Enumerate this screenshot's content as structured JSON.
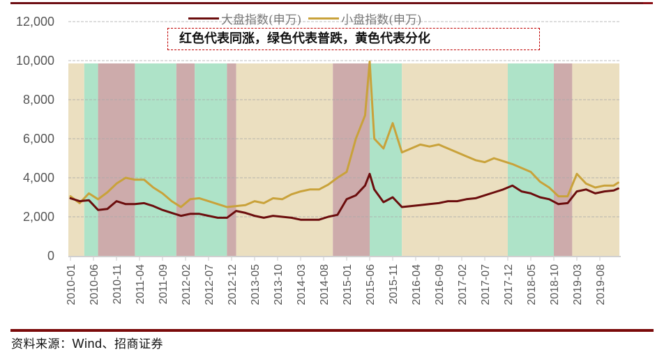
{
  "legend": {
    "items": [
      {
        "label": "大盘指数(申万)",
        "color": "#6b0d0d"
      },
      {
        "label": "小盘指数(申万)",
        "color": "#c9a23a"
      }
    ]
  },
  "annotation": {
    "text": "红色代表同涨，绿色代表普跌，黄色代表分化"
  },
  "source": {
    "prefix": "资料来源：",
    "wind": "Wind",
    "suffix": "、招商证券"
  },
  "colors": {
    "red_region": "#cdabab",
    "green_region": "#aee3c8",
    "yellow_region": "#ebdfc0",
    "large_cap_line": "#6b0d0d",
    "small_cap_line": "#c9a23a",
    "rule": "#7a0a0a",
    "annotation_border": "#c00000"
  },
  "chart_data": {
    "type": "line",
    "title": "",
    "xlabel": "",
    "ylabel": "",
    "ylim": [
      0,
      12000
    ],
    "yticks": [
      "0",
      "2,000",
      "4,000",
      "6,000",
      "8,000",
      "10,000",
      "12,000"
    ],
    "grid": "horizontal dashed",
    "legend_position": "top",
    "x_tick_labels": [
      "2010-01",
      "2010-06",
      "2010-11",
      "2011-04",
      "2011-09",
      "2012-02",
      "2012-07",
      "2012-12",
      "2013-05",
      "2013-10",
      "2014-03",
      "2014-08",
      "2015-01",
      "2015-06",
      "2015-11",
      "2016-04",
      "2016-09",
      "2017-02",
      "2017-07",
      "2017-12",
      "2018-05",
      "2018-10",
      "2019-03",
      "2019-08"
    ],
    "x": [
      "2010-01",
      "2010-03",
      "2010-05",
      "2010-07",
      "2010-09",
      "2010-11",
      "2011-01",
      "2011-03",
      "2011-05",
      "2011-07",
      "2011-09",
      "2011-11",
      "2012-01",
      "2012-03",
      "2012-05",
      "2012-07",
      "2012-09",
      "2012-11",
      "2013-01",
      "2013-03",
      "2013-05",
      "2013-07",
      "2013-09",
      "2013-11",
      "2014-01",
      "2014-03",
      "2014-05",
      "2014-07",
      "2014-09",
      "2014-11",
      "2015-01",
      "2015-03",
      "2015-05",
      "2015-06",
      "2015-07",
      "2015-09",
      "2015-11",
      "2016-01",
      "2016-03",
      "2016-05",
      "2016-07",
      "2016-09",
      "2016-11",
      "2017-01",
      "2017-03",
      "2017-05",
      "2017-07",
      "2017-09",
      "2017-11",
      "2018-01",
      "2018-03",
      "2018-05",
      "2018-07",
      "2018-09",
      "2018-11",
      "2019-01",
      "2019-03",
      "2019-05",
      "2019-07",
      "2019-09",
      "2019-11",
      "2019-12"
    ],
    "series": [
      {
        "name": "大盘指数(申万)",
        "values": [
          2950,
          2800,
          2850,
          2350,
          2400,
          2800,
          2650,
          2650,
          2700,
          2550,
          2350,
          2200,
          2050,
          2150,
          2150,
          2050,
          1950,
          1950,
          2300,
          2200,
          2050,
          1950,
          2050,
          2000,
          1950,
          1850,
          1850,
          1850,
          2000,
          2100,
          2900,
          3100,
          3600,
          4200,
          3400,
          2750,
          3000,
          2500,
          2550,
          2600,
          2650,
          2700,
          2800,
          2800,
          2900,
          2950,
          3100,
          3250,
          3400,
          3600,
          3300,
          3200,
          3000,
          2900,
          2650,
          2700,
          3300,
          3400,
          3200,
          3300,
          3350,
          3450
        ]
      },
      {
        "name": "小盘指数(申万)",
        "values": [
          3050,
          2700,
          3200,
          2900,
          3250,
          3700,
          4000,
          3900,
          3900,
          3500,
          3200,
          2800,
          2500,
          2900,
          2950,
          2800,
          2650,
          2500,
          2550,
          2600,
          2800,
          2700,
          2950,
          2900,
          3150,
          3300,
          3400,
          3400,
          3650,
          4000,
          4300,
          6000,
          7200,
          9950,
          6000,
          5500,
          6800,
          5300,
          5500,
          5700,
          5600,
          5700,
          5500,
          5300,
          5100,
          4900,
          4800,
          5000,
          4850,
          4700,
          4500,
          4300,
          3800,
          3500,
          3050,
          3050,
          4200,
          3700,
          3500,
          3600,
          3600,
          3750
        ]
      }
    ],
    "background_regions": [
      {
        "start": "2010-01",
        "end": "2010-04",
        "type": "yellow",
        "meaning": "分化"
      },
      {
        "start": "2010-04",
        "end": "2010-07",
        "type": "green",
        "meaning": "普跌"
      },
      {
        "start": "2010-07",
        "end": "2011-03",
        "type": "red",
        "meaning": "同涨"
      },
      {
        "start": "2011-03",
        "end": "2011-12",
        "type": "green",
        "meaning": "普跌"
      },
      {
        "start": "2011-12",
        "end": "2012-04",
        "type": "red",
        "meaning": "同涨"
      },
      {
        "start": "2012-04",
        "end": "2012-11",
        "type": "green",
        "meaning": "普跌"
      },
      {
        "start": "2012-11",
        "end": "2013-01",
        "type": "red",
        "meaning": "同涨"
      },
      {
        "start": "2013-01",
        "end": "2014-10",
        "type": "yellow",
        "meaning": "分化"
      },
      {
        "start": "2014-10",
        "end": "2015-06",
        "type": "red",
        "meaning": "同涨"
      },
      {
        "start": "2015-06",
        "end": "2016-01",
        "type": "green",
        "meaning": "普跌"
      },
      {
        "start": "2016-01",
        "end": "2017-12",
        "type": "yellow",
        "meaning": "分化"
      },
      {
        "start": "2017-12",
        "end": "2018-10",
        "type": "green",
        "meaning": "普跌"
      },
      {
        "start": "2018-10",
        "end": "2019-02",
        "type": "red",
        "meaning": "同涨"
      },
      {
        "start": "2019-02",
        "end": "2019-12",
        "type": "yellow",
        "meaning": "分化"
      }
    ],
    "annotations": [
      "红色代表同涨，绿色代表普跌，黄色代表分化"
    ]
  }
}
